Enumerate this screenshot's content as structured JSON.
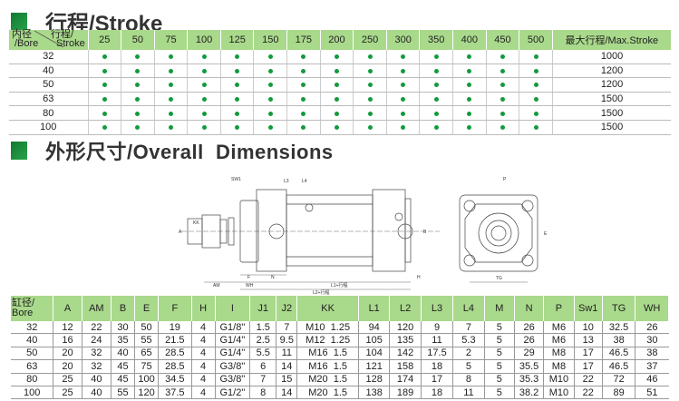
{
  "stroke_section": {
    "title": "行程/Stroke",
    "corner_header": {
      "top_left": "内径",
      "top_right": "行程/",
      "bottom_left": "/Bore",
      "bottom_right": "Stroke"
    },
    "strokes": [
      "25",
      "50",
      "75",
      "100",
      "125",
      "150",
      "175",
      "200",
      "250",
      "300",
      "350",
      "400",
      "450",
      "500"
    ],
    "max_header": "最大行程/Max.Stroke",
    "rows": [
      {
        "bore": "32",
        "max": "1000"
      },
      {
        "bore": "40",
        "max": "1200"
      },
      {
        "bore": "50",
        "max": "1200"
      },
      {
        "bore": "63",
        "max": "1500"
      },
      {
        "bore": "80",
        "max": "1500"
      },
      {
        "bore": "100",
        "max": "1500"
      }
    ],
    "available_marker": "green-dot",
    "accent_color": "#139a3c",
    "header_color": "#a9d98b"
  },
  "dimensions_section": {
    "title": "外形尺寸/Overall  Dimensions",
    "drawing_labels": {
      "sw1": "SW1",
      "l3": "L3",
      "l4": "L4",
      "p": "P",
      "tg": "TG",
      "n": "N",
      "f": "F",
      "wh": "WH",
      "am": "AM",
      "h": "H",
      "m": "M",
      "l1": "L1+行程",
      "l2": "L2+行程",
      "j1": "J1",
      "j2": "J2",
      "kk": "KK",
      "a": "A",
      "b": "B",
      "e": "E",
      "i": "I"
    },
    "headers": [
      "缸径/ Bore",
      "A",
      "AM",
      "B",
      "E",
      "F",
      "H",
      "I",
      "J1",
      "J2",
      "KK",
      "L1",
      "L2",
      "L3",
      "L4",
      "M",
      "N",
      "P",
      "Sw1",
      "TG",
      "WH"
    ],
    "rows": [
      [
        "32",
        "12",
        "22",
        "30",
        "50",
        "19",
        "4",
        "G1/8\"",
        "1.5",
        "7",
        "M10  1.25",
        "94",
        "120",
        "9",
        "7",
        "5",
        "26",
        "M6",
        "10",
        "32.5",
        "26"
      ],
      [
        "40",
        "16",
        "24",
        "35",
        "55",
        "21.5",
        "4",
        "G1/4\"",
        "2.5",
        "9.5",
        "M12  1.25",
        "105",
        "135",
        "11",
        "5.3",
        "5",
        "26",
        "M6",
        "13",
        "38",
        "30"
      ],
      [
        "50",
        "20",
        "32",
        "40",
        "65",
        "28.5",
        "4",
        "G1/4\"",
        "5.5",
        "11",
        "M16  1.5",
        "104",
        "142",
        "17.5",
        "2",
        "5",
        "29",
        "M8",
        "17",
        "46.5",
        "38"
      ],
      [
        "63",
        "20",
        "32",
        "45",
        "75",
        "28.5",
        "4",
        "G3/8\"",
        "6",
        "14",
        "M16  1.5",
        "121",
        "158",
        "18",
        "5",
        "5",
        "35.5",
        "M8",
        "17",
        "46.5",
        "37"
      ],
      [
        "80",
        "25",
        "40",
        "45",
        "100",
        "34.5",
        "4",
        "G3/8\"",
        "7",
        "15",
        "M20  1.5",
        "128",
        "174",
        "17",
        "8",
        "5",
        "35.3",
        "M10",
        "22",
        "72",
        "46"
      ],
      [
        "100",
        "25",
        "40",
        "55",
        "120",
        "37.5",
        "4",
        "G1/2\"",
        "8",
        "14",
        "M20  1.5",
        "138",
        "189",
        "18",
        "11",
        "5",
        "38.2",
        "M10",
        "22",
        "89",
        "51"
      ]
    ]
  }
}
